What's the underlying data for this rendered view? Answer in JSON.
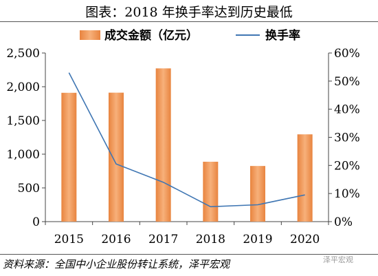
{
  "title": "图表：2018 年换手率达到历史最低",
  "source": "资料来源：全国中小企业股份转让系统，泽平宏观",
  "watermark": "泽平宏观",
  "colors": {
    "bar": "#e8843f",
    "bar_light": "#f7b07a",
    "line": "#3f76b3"
  },
  "chart_data": {
    "type": "bar",
    "categories": [
      "2015",
      "2016",
      "2017",
      "2018",
      "2019",
      "2020"
    ],
    "series": [
      {
        "name": "成交金额（亿元）",
        "type": "bar",
        "axis": "left",
        "values": [
          1910,
          1912,
          2272,
          888,
          825,
          1294
        ]
      },
      {
        "name": "换手率",
        "type": "line",
        "axis": "right",
        "values": [
          0.53,
          0.205,
          0.14,
          0.053,
          0.06,
          0.095
        ]
      }
    ],
    "ylim_left": [
      0,
      2500
    ],
    "yticks_left": [
      "0",
      "500",
      "1,000",
      "1,500",
      "2,000",
      "2,500"
    ],
    "ylim_right": [
      0,
      0.6
    ],
    "yticks_right": [
      "0%",
      "10%",
      "20%",
      "30%",
      "40%",
      "50%",
      "60%"
    ],
    "legend": "top",
    "grid": false
  }
}
